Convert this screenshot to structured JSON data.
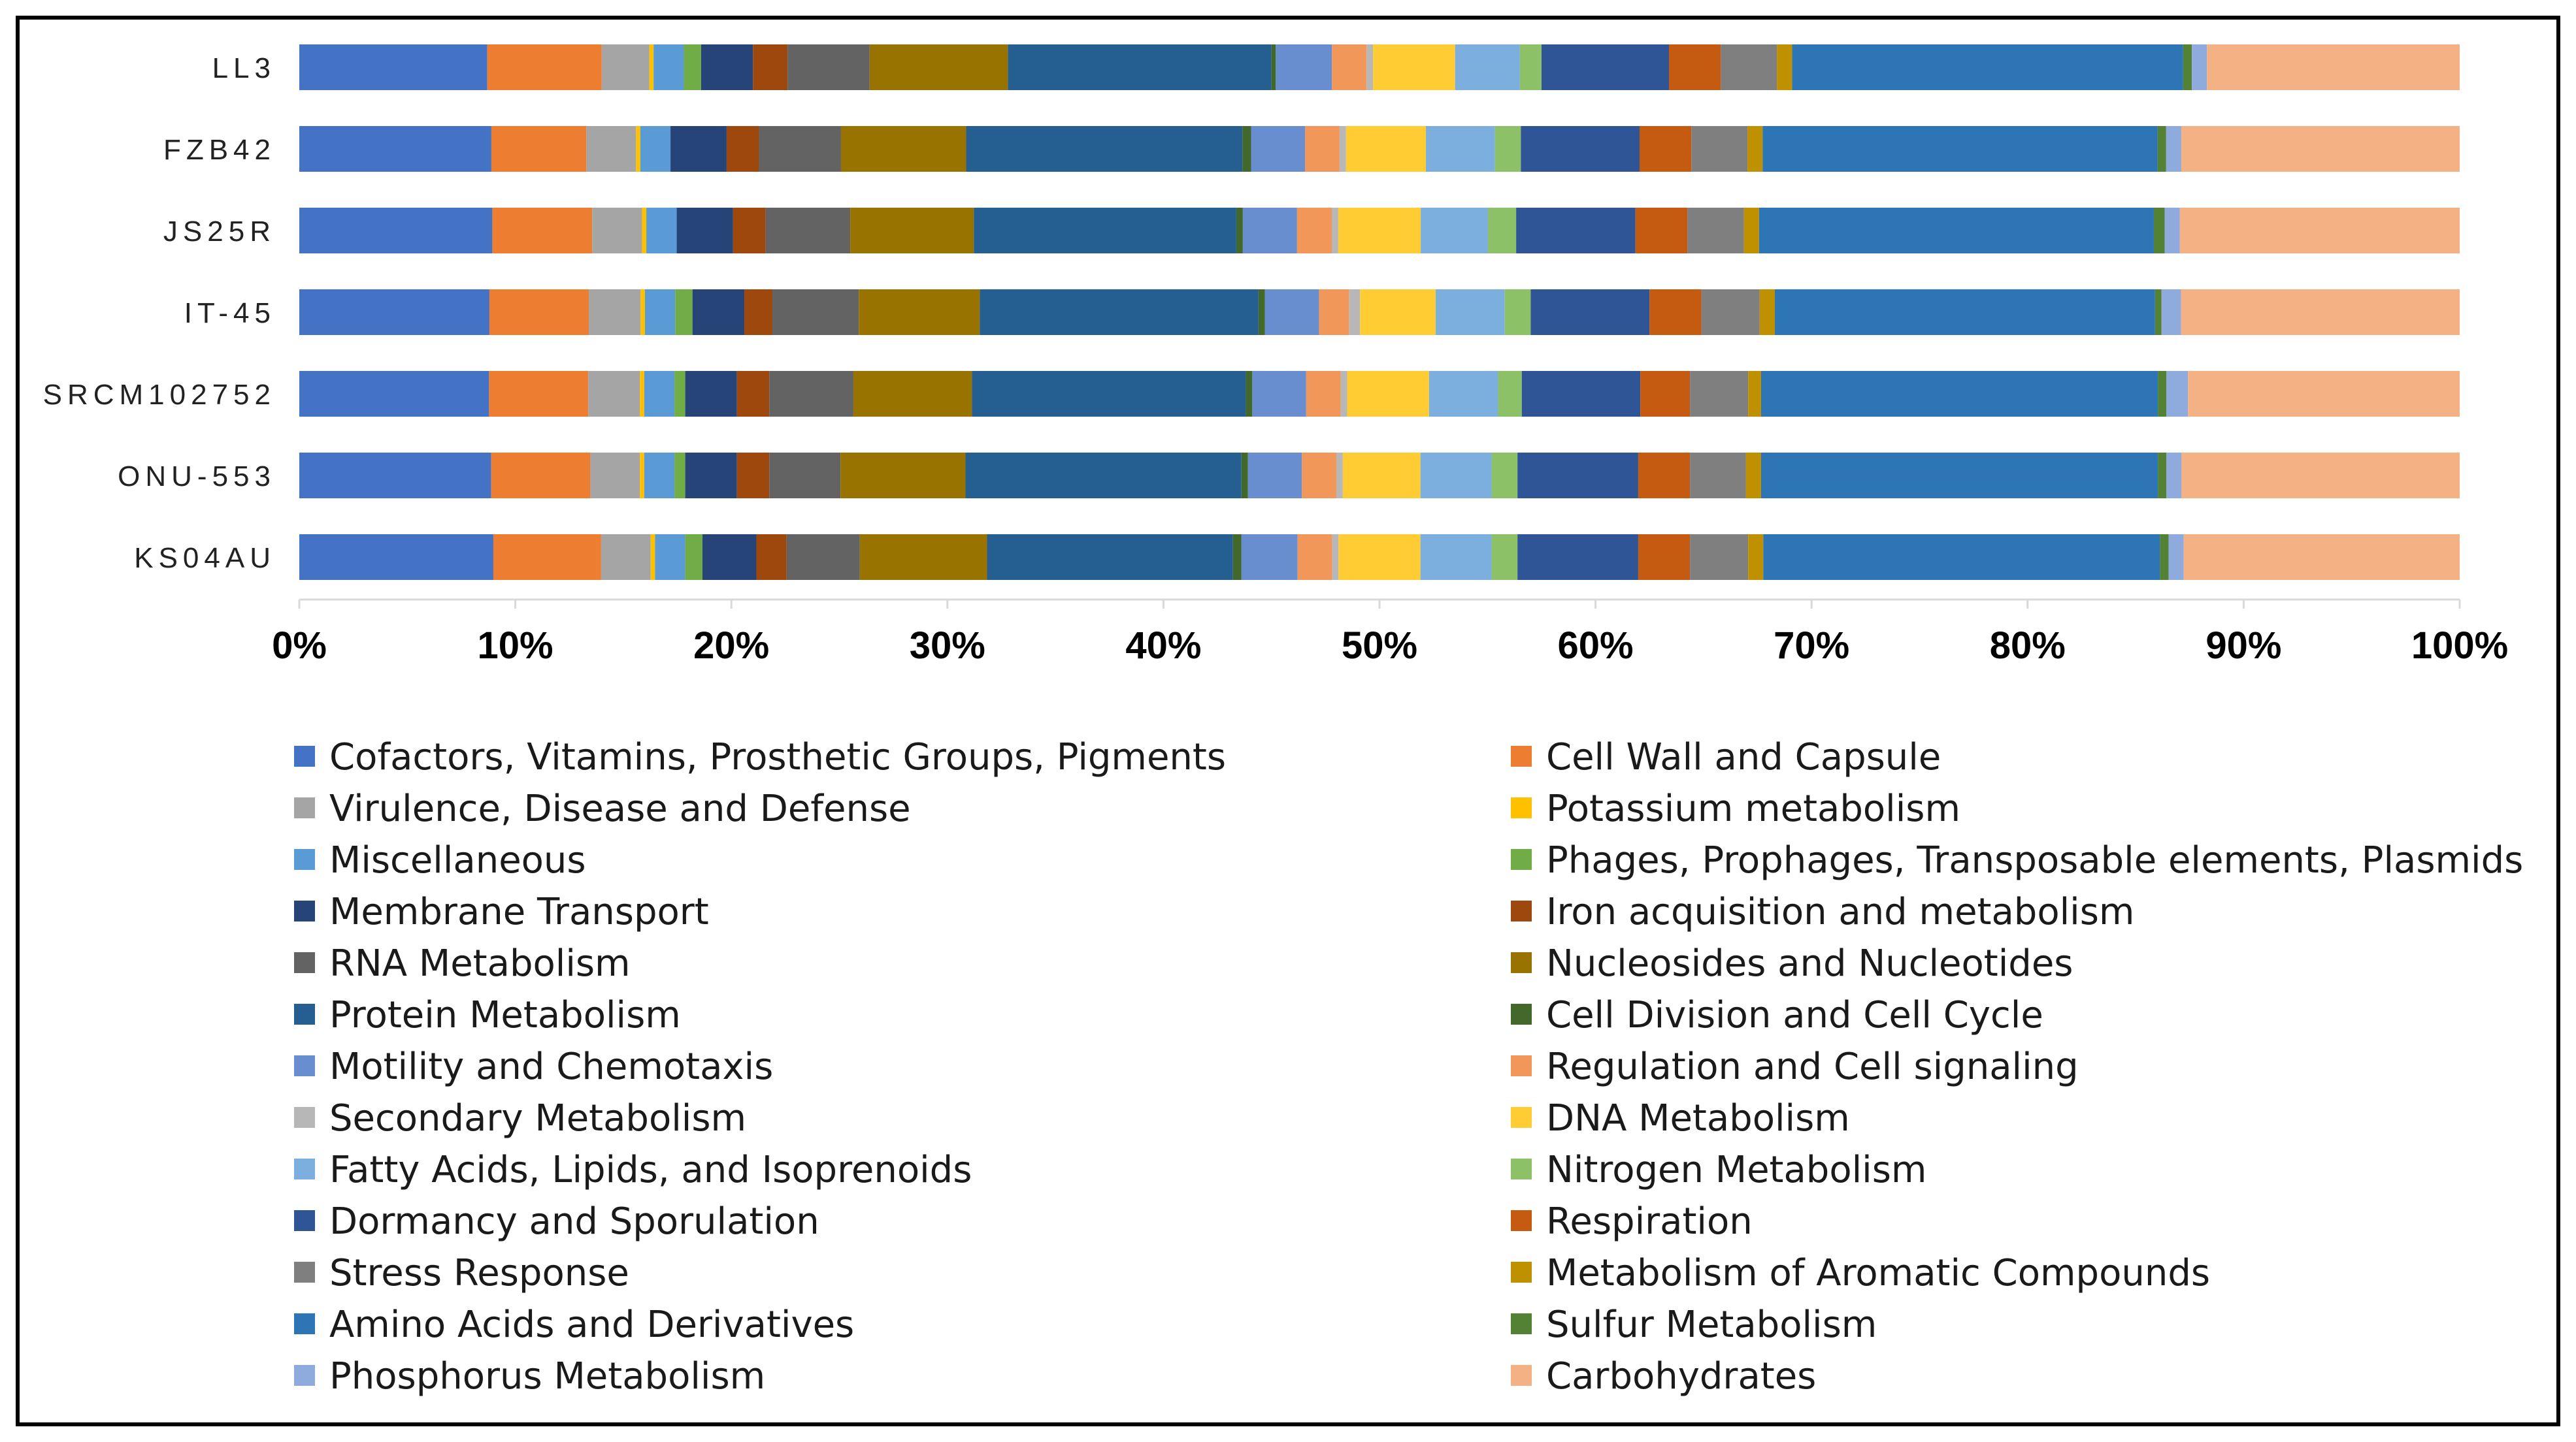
{
  "chart_data": {
    "type": "bar",
    "orientation": "horizontal",
    "stacked": true,
    "normalized_percent": true,
    "title": "",
    "xlabel": "",
    "ylabel": "",
    "xlim": [
      0,
      100
    ],
    "x_ticks": [
      "0%",
      "10%",
      "20%",
      "30%",
      "40%",
      "50%",
      "60%",
      "70%",
      "80%",
      "90%",
      "100%"
    ],
    "grid": false,
    "legend_position": "bottom",
    "categories": [
      "LL3",
      "FZB42",
      "JS25R",
      "IT-45",
      "SRCM102752",
      "ONU-553",
      "KS04AU"
    ],
    "series": [
      {
        "name": "Cofactors, Vitamins, Prosthetic Groups, Pigments",
        "color": "#4472C4",
        "values": [
          8.7,
          8.9,
          8.9,
          8.8,
          8.8,
          8.9,
          9.0
        ]
      },
      {
        "name": "Cell Wall and Capsule",
        "color": "#ED7D31",
        "values": [
          5.3,
          4.4,
          4.6,
          4.6,
          4.6,
          4.6,
          5.0
        ]
      },
      {
        "name": "Virulence, Disease and Defense",
        "color": "#A5A5A5",
        "values": [
          2.2,
          2.3,
          2.3,
          2.4,
          2.4,
          2.3,
          2.3
        ]
      },
      {
        "name": "Potassium metabolism",
        "color": "#FFC000",
        "values": [
          0.2,
          0.2,
          0.2,
          0.2,
          0.2,
          0.2,
          0.2
        ]
      },
      {
        "name": "Miscellaneous",
        "color": "#5B9BD5",
        "values": [
          1.4,
          1.4,
          1.4,
          1.4,
          1.4,
          1.4,
          1.4
        ]
      },
      {
        "name": "Phages, Prophages, Transposable elements, Plasmids",
        "color": "#70AD47",
        "values": [
          0.8,
          0.0,
          0.0,
          0.8,
          0.5,
          0.5,
          0.8
        ]
      },
      {
        "name": "Membrane Transport",
        "color": "#264478",
        "values": [
          2.4,
          2.6,
          2.6,
          2.4,
          2.4,
          2.4,
          2.5
        ]
      },
      {
        "name": "Iron acquisition and metabolism",
        "color": "#9E480E",
        "values": [
          1.6,
          1.5,
          1.5,
          1.3,
          1.5,
          1.5,
          1.4
        ]
      },
      {
        "name": "RNA Metabolism",
        "color": "#636363",
        "values": [
          3.8,
          3.8,
          3.9,
          4.0,
          3.9,
          3.3,
          3.4
        ]
      },
      {
        "name": "Nucleosides and Nucleotides",
        "color": "#997300",
        "values": [
          6.4,
          5.8,
          5.7,
          5.6,
          5.5,
          5.8,
          5.9
        ]
      },
      {
        "name": "Protein Metabolism",
        "color": "#255E91",
        "values": [
          12.2,
          12.8,
          12.1,
          12.9,
          12.7,
          12.8,
          11.4
        ]
      },
      {
        "name": "Cell Division and Cell Cycle",
        "color": "#43682B",
        "values": [
          0.2,
          0.4,
          0.3,
          0.3,
          0.3,
          0.3,
          0.4
        ]
      },
      {
        "name": "Motility and Chemotaxis",
        "color": "#698ED0",
        "values": [
          2.6,
          2.5,
          2.5,
          2.5,
          2.5,
          2.5,
          2.6
        ]
      },
      {
        "name": "Regulation and Cell signaling",
        "color": "#F1975A",
        "values": [
          1.6,
          1.6,
          1.6,
          1.4,
          1.6,
          1.6,
          1.6
        ]
      },
      {
        "name": "Secondary Metabolism",
        "color": "#B7B7B7",
        "values": [
          0.3,
          0.3,
          0.3,
          0.5,
          0.3,
          0.3,
          0.3
        ]
      },
      {
        "name": "DNA Metabolism",
        "color": "#FFCD33",
        "values": [
          3.8,
          3.7,
          3.8,
          3.5,
          3.8,
          3.6,
          3.8
        ]
      },
      {
        "name": "Fatty Acids, Lipids, and Isoprenoids",
        "color": "#7CAFDD",
        "values": [
          3.0,
          3.2,
          3.1,
          3.2,
          3.2,
          3.3,
          3.3
        ]
      },
      {
        "name": "Nitrogen Metabolism",
        "color": "#8CC168",
        "values": [
          1.0,
          1.2,
          1.3,
          1.2,
          1.1,
          1.2,
          1.2
        ]
      },
      {
        "name": "Dormancy and Sporulation",
        "color": "#2F5597",
        "values": [
          5.9,
          5.5,
          5.5,
          5.5,
          5.5,
          5.6,
          5.6
        ]
      },
      {
        "name": "Respiration",
        "color": "#C55A11",
        "values": [
          2.4,
          2.4,
          2.4,
          2.4,
          2.3,
          2.4,
          2.4
        ]
      },
      {
        "name": "Stress Response",
        "color": "#7F7F7F",
        "values": [
          2.6,
          2.6,
          2.6,
          2.7,
          2.7,
          2.6,
          2.7
        ]
      },
      {
        "name": "Metabolism of Aromatic Compounds",
        "color": "#BF9000",
        "values": [
          0.7,
          0.7,
          0.7,
          0.7,
          0.6,
          0.7,
          0.7
        ]
      },
      {
        "name": "Amino Acids and Derivatives",
        "color": "#2E75B6",
        "values": [
          18.1,
          18.3,
          18.2,
          17.6,
          18.4,
          18.4,
          18.4
        ]
      },
      {
        "name": "Sulfur Metabolism",
        "color": "#548235",
        "values": [
          0.4,
          0.4,
          0.5,
          0.3,
          0.4,
          0.4,
          0.4
        ]
      },
      {
        "name": "Phosphorus Metabolism",
        "color": "#8FAADC",
        "values": [
          0.7,
          0.7,
          0.7,
          0.9,
          1.0,
          0.7,
          0.7
        ]
      },
      {
        "name": "Carbohydrates",
        "color": "#F4B183",
        "values": [
          11.7,
          12.9,
          12.9,
          12.9,
          12.6,
          12.9,
          12.8
        ]
      }
    ]
  }
}
